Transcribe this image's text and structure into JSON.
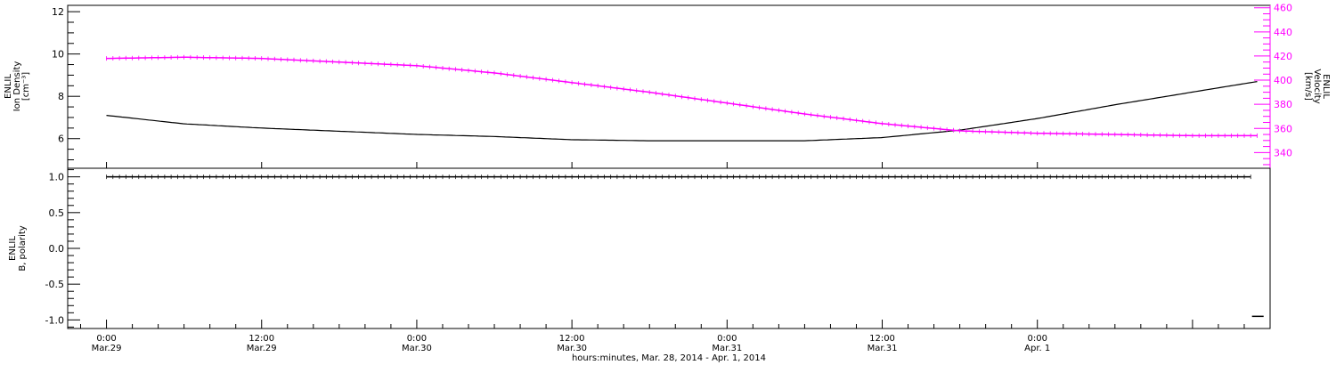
{
  "chart_data": [
    {
      "type": "line",
      "panel": "top",
      "ylabel_lines": [
        "ENLIL",
        "Ion Density",
        "[cm⁻³]"
      ],
      "ylim": [
        4.6,
        12.3
      ],
      "yticks": [
        6,
        8,
        10,
        12
      ],
      "ytick_labels": [
        "6",
        "8",
        "10",
        "12"
      ],
      "series": [
        {
          "axis": "left",
          "color": "#000000",
          "x": [
            0,
            6,
            12,
            18,
            24,
            30,
            36,
            42,
            48,
            54,
            60,
            66,
            72,
            78,
            84,
            89
          ],
          "y": [
            7.1,
            6.7,
            6.5,
            6.35,
            6.2,
            6.1,
            5.95,
            5.9,
            5.9,
            5.9,
            6.05,
            6.4,
            6.95,
            7.6,
            8.2,
            8.7
          ]
        },
        {
          "axis": "right",
          "color": "#ff00ff",
          "x": [
            0,
            6,
            12,
            18,
            24,
            30,
            36,
            42,
            48,
            54,
            60,
            66,
            72,
            78,
            84,
            89
          ],
          "y": [
            418,
            419,
            418,
            415,
            412,
            406,
            398,
            390,
            381,
            372,
            364,
            358,
            356,
            355,
            354,
            354
          ]
        }
      ],
      "y2label_lines": [
        "ENLIL",
        "Velocity",
        "[km/s]"
      ],
      "y2lim": [
        327,
        462
      ],
      "y2ticks": [
        340,
        360,
        380,
        400,
        420,
        440,
        460
      ],
      "y2tick_labels": [
        "340",
        "360",
        "380",
        "400",
        "420",
        "440",
        "460"
      ]
    },
    {
      "type": "line",
      "panel": "bottom",
      "ylabel_lines": [
        "ENLIL",
        "B, polarity"
      ],
      "ylim": [
        -1.12,
        1.12
      ],
      "yticks": [
        -1.0,
        -0.5,
        0.0,
        0.5,
        1.0
      ],
      "ytick_labels": [
        "-1.0",
        "-0.5",
        "0.0",
        "0.5",
        "1.0"
      ],
      "series": [
        {
          "color": "#000000",
          "x": [
            0,
            88.5,
            88.6,
            89.5
          ],
          "y": [
            1.0,
            1.0,
            -0.95,
            -0.95
          ]
        }
      ]
    }
  ],
  "x_axis": {
    "xlim": [
      -3,
      90
    ],
    "ticks": [
      {
        "x": 0,
        "time": "0:00",
        "date": "Mar.29"
      },
      {
        "x": 12,
        "time": "12:00",
        "date": "Mar.29"
      },
      {
        "x": 24,
        "time": "0:00",
        "date": "Mar.30"
      },
      {
        "x": 36,
        "time": "12:00",
        "date": "Mar.30"
      },
      {
        "x": 48,
        "time": "0:00",
        "date": "Mar.31"
      },
      {
        "x": 60,
        "time": "12:00",
        "date": "Mar.31"
      },
      {
        "x": 72,
        "time": "0:00",
        "date": "Apr. 1"
      }
    ],
    "xlabel": "hours:minutes, Mar. 28, 2014 - Apr.  1, 2014"
  }
}
